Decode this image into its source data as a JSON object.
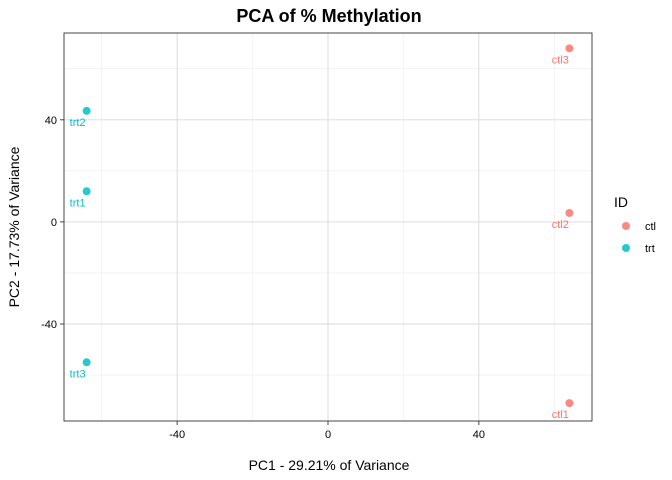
{
  "chart_data": {
    "type": "scatter",
    "title": "PCA of % Methylation",
    "xlabel": "PC1 - 29.21% of Variance",
    "ylabel": "PC2 - 17.73% of Variance",
    "xlim": [
      -70,
      70
    ],
    "ylim": [
      -78,
      74
    ],
    "xticks": [
      -40,
      0,
      40
    ],
    "yticks": [
      -40,
      0,
      40
    ],
    "xtick_labels": [
      "-40",
      "0",
      "40"
    ],
    "ytick_labels": [
      "-40",
      "0",
      "40"
    ],
    "grid": true,
    "legend": {
      "title": "ID",
      "position": "right"
    },
    "series": [
      {
        "name": "ctl",
        "color": "#F8766D",
        "points": [
          {
            "label": "ctl1",
            "x": 64,
            "y": -71
          },
          {
            "label": "ctl2",
            "x": 64,
            "y": 3.5
          },
          {
            "label": "ctl3",
            "x": 64,
            "y": 68
          }
        ]
      },
      {
        "name": "trt",
        "color": "#00BFC4",
        "points": [
          {
            "label": "trt1",
            "x": -64,
            "y": 12
          },
          {
            "label": "trt2",
            "x": -64,
            "y": 43.5
          },
          {
            "label": "trt3",
            "x": -64,
            "y": -55
          }
        ]
      }
    ]
  }
}
